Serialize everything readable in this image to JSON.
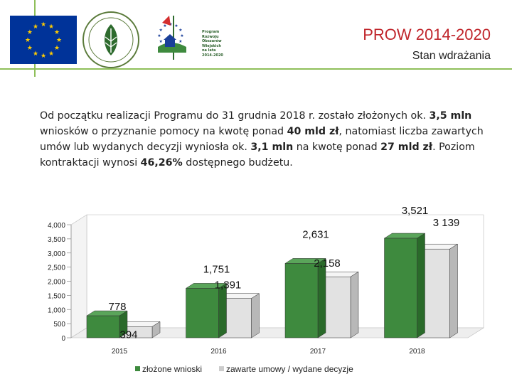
{
  "header": {
    "title": "PROW 2014-2020",
    "subtitle": "Stan wdrażania",
    "eu_flag_color": "#003399",
    "eu_star_color": "#ffcc00",
    "logos": {
      "krajowy": {
        "icon": "wheat-seal-logo"
      },
      "prow": {
        "icon": "prow-logo",
        "text": [
          "Program",
          "Rozwoju",
          "Obszarów",
          "Wiejskich",
          "na lata",
          "2014-2020"
        ]
      }
    }
  },
  "intro": {
    "p1": "Od początku realizacji Programu do 31 grudnia 2018 r. zostało złożonych ok. ",
    "b1": "3,5 mln",
    "p2": " wniosków o przyznanie pomocy na kwotę ponad ",
    "b2": "40 mld zł",
    "p3": ", natomiast liczba zawartych umów lub wydanych decyzji wyniosła ok. ",
    "b3": "3,1 mln",
    "p4": " na kwotę ponad ",
    "b4": "27 mld zł",
    "p5": ". Poziom kontraktacji wynosi ",
    "b5": "46,26%",
    "p6": " dostępnego budżetu."
  },
  "chart_data": {
    "type": "bar",
    "categories": [
      "2015",
      "2016",
      "2017",
      "2018"
    ],
    "series": [
      {
        "name": "złożone wnioski",
        "values": [
          778,
          1751,
          2631,
          3521
        ],
        "labels": [
          "778",
          "1,751",
          "2,631",
          "3,521"
        ],
        "color": "#3e8a3e"
      },
      {
        "name": "zawarte umowy / wydane decyzje",
        "values": [
          394,
          1391,
          2158,
          3139
        ],
        "labels": [
          "394",
          "1,391",
          "2,158",
          "3 139"
        ],
        "color": "#e2e2e2"
      }
    ],
    "yticks": [
      "0",
      "500",
      "1,000",
      "1,500",
      "2,000",
      "2,500",
      "3,000",
      "3,500",
      "4,000"
    ],
    "ylim": [
      0,
      4000
    ],
    "three_d": true,
    "legend_position": "bottom",
    "xlabel": "",
    "ylabel": ""
  }
}
